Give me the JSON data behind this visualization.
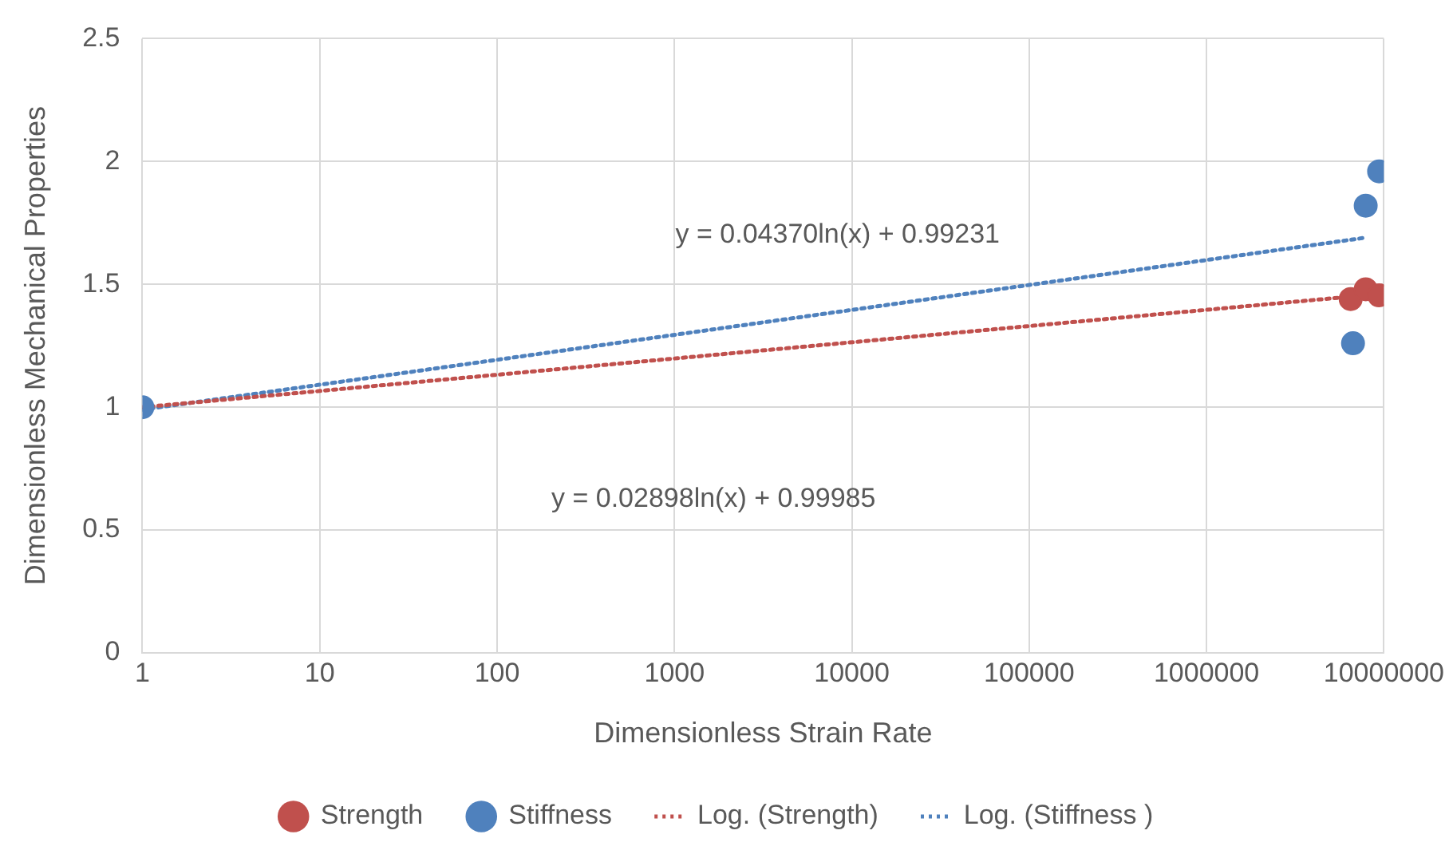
{
  "chart_data": {
    "type": "scatter",
    "xlabel": "Dimensionless Strain Rate",
    "ylabel": "Dimensionless Mechanical Properties",
    "log": "x",
    "xlim": [
      1,
      10000000
    ],
    "xticks": [
      1,
      10,
      100,
      1000,
      10000,
      100000,
      1000000,
      10000000
    ],
    "ylim": [
      0,
      2.5
    ],
    "yticks": [
      0,
      0.5,
      1,
      1.5,
      2,
      2.5
    ],
    "grid": true,
    "legend": "bottom",
    "marker": "circle",
    "series": [
      {
        "name": "Strength",
        "color": "#c0504d",
        "x": [
          6500000,
          7900000,
          9400000
        ],
        "values": [
          1.44,
          1.48,
          1.455
        ]
      },
      {
        "name": "Stiffness",
        "color": "#4f81bd",
        "x": [
          1,
          6700000,
          7900000,
          9400000
        ],
        "values": [
          1,
          1.26,
          1.82,
          1.96
        ]
      },
      {
        "name": "Log. (Strength)",
        "type": "line",
        "color": "#c0504d",
        "line_style": "dotted",
        "marker": "none",
        "x": [
          1,
          6500000
        ],
        "values": [
          1.0,
          1.45
        ]
      },
      {
        "name": "Log. (Stiffness )",
        "type": "line",
        "color": "#4f81bd",
        "line_style": "dotted",
        "marker": "none",
        "x": [
          1,
          7900000
        ],
        "values": [
          0.99,
          1.69
        ]
      }
    ],
    "annotations": [
      "y = 0.04370ln(x) + 0.99231",
      "y = 0.02898ln(x) + 0.99985"
    ]
  }
}
